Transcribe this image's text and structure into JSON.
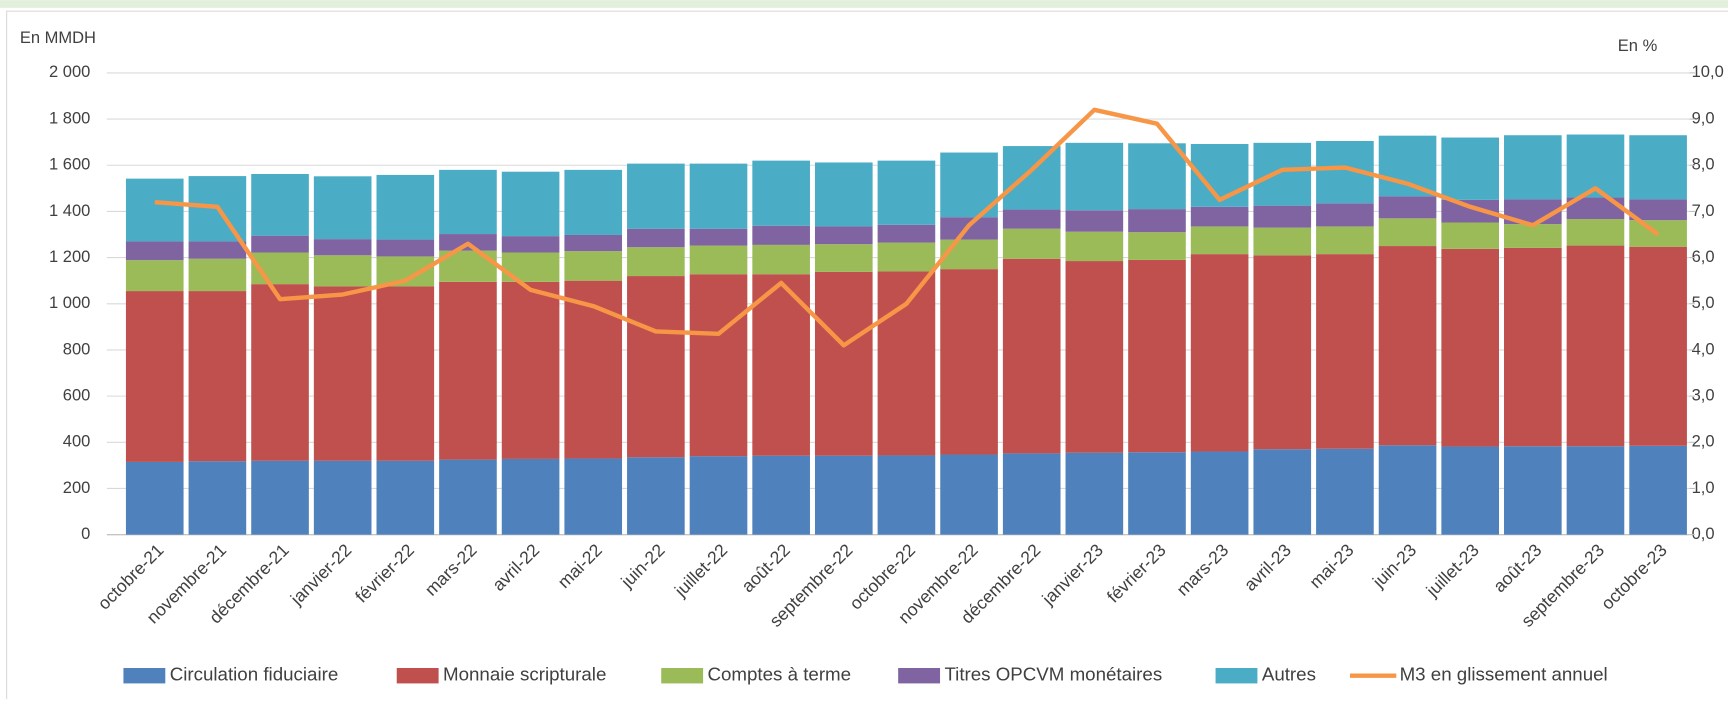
{
  "chart_data": {
    "type": "bar",
    "stacked": true,
    "ylabel": "En MMDH",
    "y2label": "En %",
    "categories": [
      "octobre-21",
      "novembre-21",
      "décembre-21",
      "janvier-22",
      "février-22",
      "mars-22",
      "avril-22",
      "mai-22",
      "juin-22",
      "juillet-22",
      "août-22",
      "septembre-22",
      "octobre-22",
      "novembre-22",
      "décembre-22",
      "janvier-23",
      "février-23",
      "mars-23",
      "avril-23",
      "mai-23",
      "juin-23",
      "juillet-23",
      "août-23",
      "septembre-23",
      "octobre-23"
    ],
    "series": [
      {
        "name": "Circulation fiduciaire",
        "color": "#4f81bd",
        "values": [
          315,
          318,
          320,
          320,
          320,
          325,
          328,
          330,
          335,
          340,
          342,
          342,
          343,
          347,
          352,
          355,
          357,
          360,
          370,
          372,
          387,
          382,
          383,
          383,
          385
        ]
      },
      {
        "name": "Monnaie scripturale",
        "color": "#c0504d",
        "values": [
          740,
          737,
          765,
          755,
          755,
          770,
          767,
          770,
          785,
          788,
          786,
          796,
          797,
          803,
          843,
          830,
          833,
          855,
          840,
          843,
          863,
          856,
          859,
          869,
          862
        ]
      },
      {
        "name": "Comptes à terme",
        "color": "#9bbb59",
        "values": [
          134,
          140,
          137,
          135,
          130,
          135,
          127,
          128,
          125,
          124,
          127,
          120,
          125,
          128,
          130,
          127,
          120,
          120,
          120,
          120,
          120,
          114,
          103,
          115,
          115
        ]
      },
      {
        "name": "Titres OPCVM monétaires",
        "color": "#8064a2",
        "values": [
          81,
          75,
          73,
          70,
          73,
          72,
          71,
          70,
          80,
          73,
          83,
          77,
          77,
          97,
          83,
          93,
          100,
          85,
          95,
          100,
          95,
          98,
          107,
          93,
          90
        ]
      },
      {
        "name": "Autres",
        "color": "#4bacc6",
        "values": [
          272,
          283,
          267,
          272,
          280,
          278,
          279,
          282,
          282,
          282,
          282,
          277,
          278,
          280,
          275,
          292,
          285,
          272,
          272,
          270,
          263,
          270,
          278,
          273,
          278
        ]
      },
      {
        "name": "M3 en glissement annuel",
        "color": "#f79646",
        "type": "line",
        "axis": "y2",
        "values": [
          7.2,
          7.1,
          5.1,
          5.2,
          5.5,
          6.3,
          5.3,
          4.95,
          4.4,
          4.35,
          5.45,
          4.1,
          5.0,
          6.7,
          7.9,
          9.2,
          8.9,
          7.25,
          7.9,
          7.95,
          7.6,
          7.1,
          6.7,
          7.5,
          6.5
        ]
      }
    ],
    "ylim": [
      0,
      2000
    ],
    "yticks": [
      0,
      {
        "value": 200,
        "label": "200"
      },
      400,
      600,
      800,
      {
        "value": 1000,
        "label": "1 000"
      },
      {
        "value": 1200,
        "label": "1 200"
      },
      {
        "value": 1400,
        "label": "1 400"
      },
      {
        "value": 1600,
        "label": "1 600"
      },
      {
        "value": 1800,
        "label": "1 800"
      },
      {
        "value": 2000,
        "label": "2 000"
      }
    ],
    "y2lim": [
      0,
      10
    ],
    "y2ticks": [
      {
        "value": 0,
        "label": "0,0"
      },
      {
        "value": 1,
        "label": "1,0"
      },
      {
        "value": 2,
        "label": "2,0"
      },
      {
        "value": 3,
        "label": "3,0"
      },
      {
        "value": 4,
        "label": "4,0"
      },
      {
        "value": 5,
        "label": "5,0"
      },
      {
        "value": 6,
        "label": "6,0"
      },
      {
        "value": 7,
        "label": "7,0"
      },
      {
        "value": 8,
        "label": "8,0"
      },
      {
        "value": 9,
        "label": "9,0"
      },
      {
        "value": 10,
        "label": "10,0"
      }
    ],
    "grid": true,
    "legend": "bottom"
  }
}
